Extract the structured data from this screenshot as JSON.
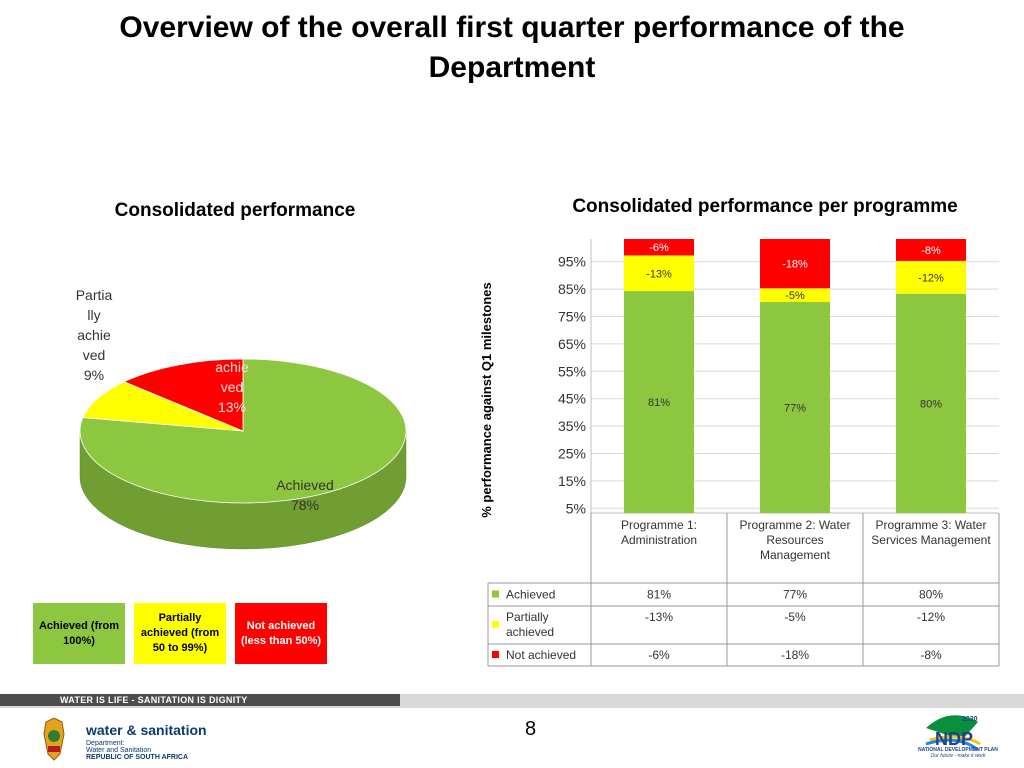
{
  "header": {
    "title": "Overview of the overall first quarter performance of the Department"
  },
  "pie_chart_title": "Consolidated performance",
  "bar_chart_title": "Consolidated performance per programme",
  "bar_ylabel": "% performance against Q1 milestones",
  "legend_boxes": [
    {
      "label": "Achieved (from 100%)"
    },
    {
      "label": "Partially achieved (from 50 to 99%)"
    },
    {
      "label": "Not achieved (less than 50%)"
    }
  ],
  "footer": {
    "slogan": "WATER IS LIFE - SANITATION IS DIGNITY",
    "page_number": "8",
    "logo_main": "water & sanitation",
    "logo_dept_lines": [
      "Department:",
      "Water and Sanitation",
      "REPUBLIC OF SOUTH AFRICA"
    ],
    "ndp_number": "2030",
    "ndp_label": "NDP",
    "ndp_sub": [
      "NATIONAL DEVELOPMENT PLAN",
      "Our future - make it work"
    ]
  },
  "colors": {
    "achieved": "#8dc63f",
    "partial": "#ffff00",
    "not_achieved": "#ff0000"
  },
  "chart_data": [
    {
      "type": "pie",
      "title": "Consolidated performance",
      "slices": [
        {
          "label": "Achieved",
          "value": 78,
          "value_label": "78%",
          "color": "#8dc63f"
        },
        {
          "label": "Partially achieved",
          "value": 9,
          "value_label": "9%",
          "color": "#ffff00"
        },
        {
          "label": "achieved",
          "value": 13,
          "value_label": "13%",
          "color": "#ff0000"
        }
      ]
    },
    {
      "type": "bar",
      "stacked": true,
      "title": "Consolidated performance per programme",
      "ylabel": "% performance against Q1 milestones",
      "ylim": [
        0,
        100
      ],
      "yticks": [
        "5%",
        "15%",
        "25%",
        "35%",
        "45%",
        "55%",
        "65%",
        "75%",
        "85%",
        "95%"
      ],
      "categories": [
        "Programme 1: Administration",
        "Programme 2: Water Resources Management",
        "Programme 3: Water Services Management"
      ],
      "series": [
        {
          "name": "Achieved",
          "values": [
            81,
            77,
            80
          ],
          "labels": [
            "81%",
            "77%",
            "80%"
          ],
          "color": "#8dc63f"
        },
        {
          "name": "Partially achieved",
          "values": [
            13,
            5,
            12
          ],
          "labels": [
            "-13%",
            "-5%",
            "-12%"
          ],
          "color": "#ffff00"
        },
        {
          "name": "Not achieved",
          "values": [
            6,
            18,
            8
          ],
          "labels": [
            "-6%",
            "-18%",
            "-8%"
          ],
          "color": "#ff0000"
        }
      ],
      "data_table": true,
      "grid": true
    }
  ]
}
